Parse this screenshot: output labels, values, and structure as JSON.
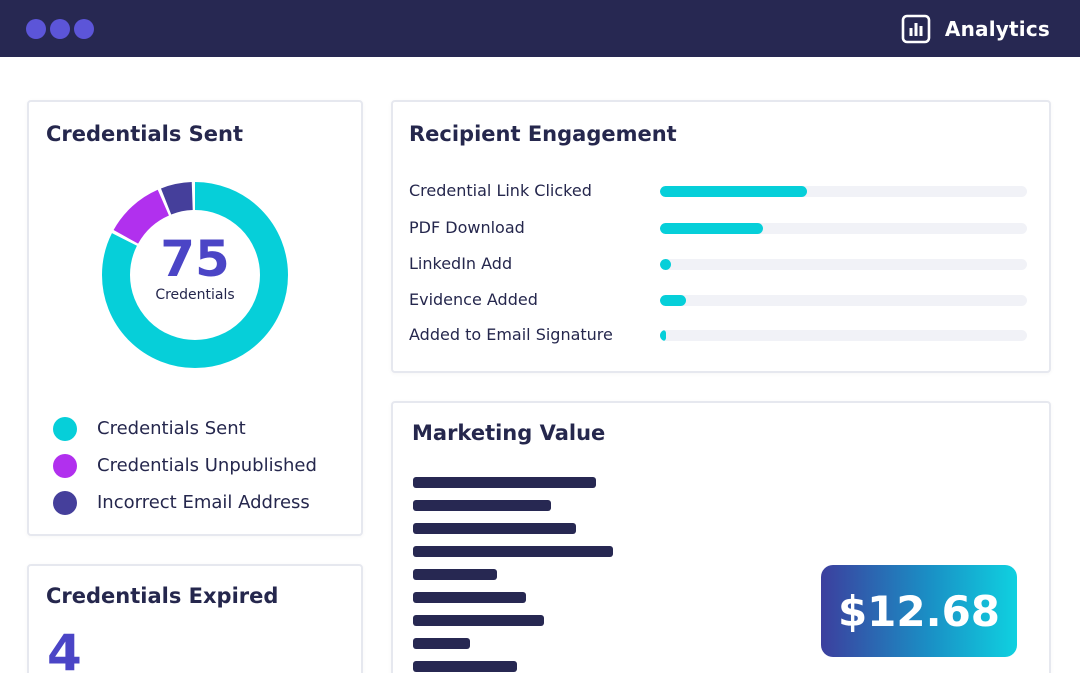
{
  "header": {
    "app_title": "Analytics",
    "icon": "bar-chart-icon"
  },
  "cards": {
    "credentials_sent": {
      "title": "Credentials Sent",
      "total": "75",
      "total_label": "Credentials",
      "segments": [
        {
          "label": "Credentials Sent",
          "fraction": 0.83,
          "color": "#06cfd9"
        },
        {
          "label": "Credentials Unpublished",
          "fraction": 0.11,
          "color": "#b130ee"
        },
        {
          "label": "Incorrect Email Address",
          "fraction": 0.06,
          "color": "#453f9b"
        }
      ]
    },
    "credentials_expired": {
      "title": "Credentials Expired",
      "value": "4"
    },
    "engagement": {
      "title": "Recipient Engagement",
      "items": [
        {
          "label": "Credential Link Clicked",
          "fraction": 0.4
        },
        {
          "label": "PDF Download",
          "fraction": 0.28
        },
        {
          "label": "LinkedIn Add",
          "fraction": 0.03
        },
        {
          "label": "Evidence Added",
          "fraction": 0.07
        },
        {
          "label": "Added to Email Signature",
          "fraction": 0.015
        }
      ]
    },
    "marketing": {
      "title": "Marketing Value",
      "value": "$12.68"
    }
  },
  "colors": {
    "topbar": "#272852",
    "accent": "#06cfd9",
    "purple": "#b130ee",
    "indigo": "#453f9b",
    "number": "#4b45c6"
  }
}
